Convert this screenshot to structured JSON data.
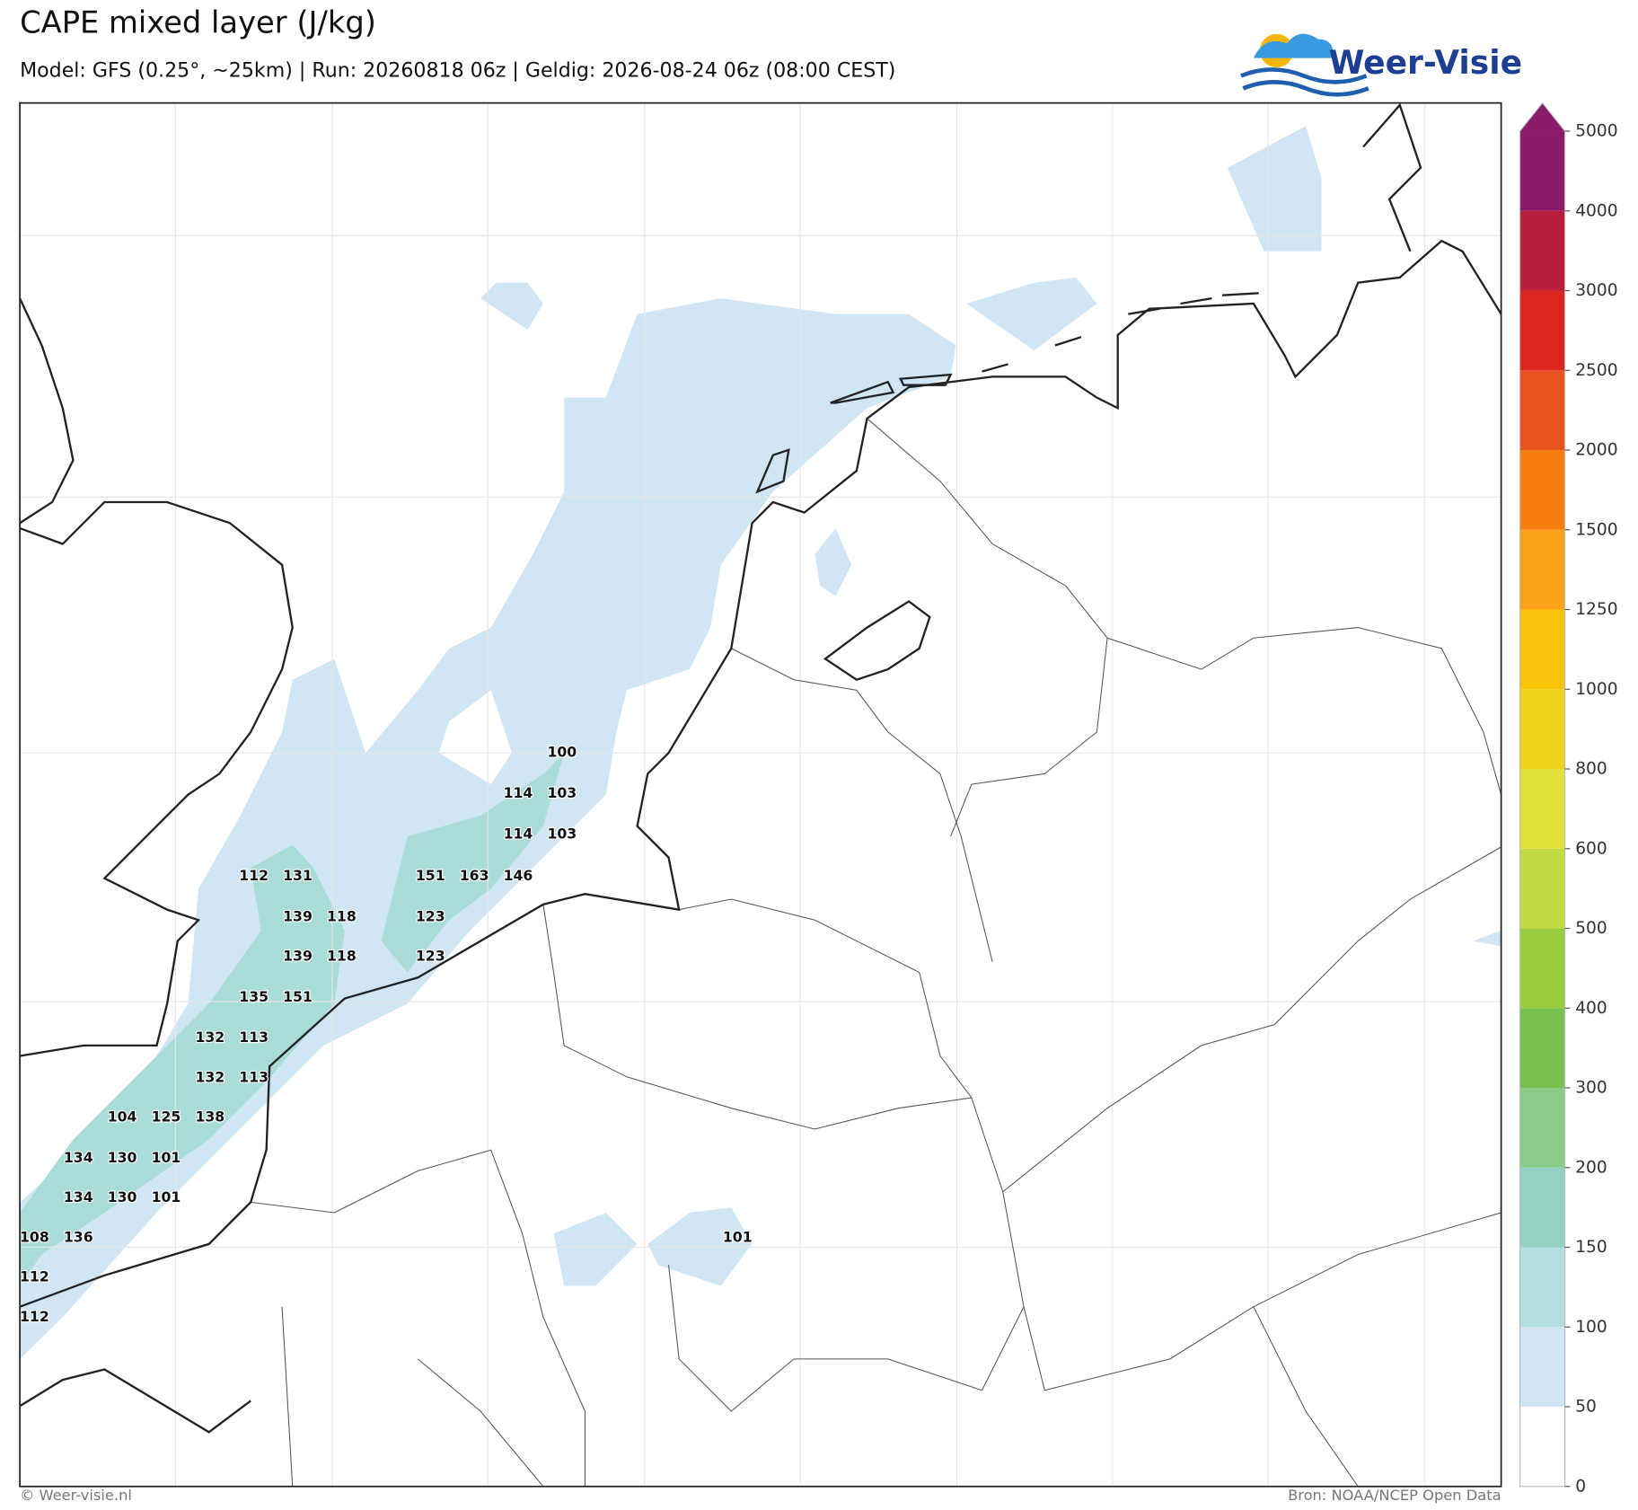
{
  "header": {
    "title": "CAPE mixed layer (J/kg)",
    "subtitle": "Model: GFS (0.25°, ~25km)  |  Run: 20260818 06z  |  Geldig: 2026-08-24 06z (08:00 CEST)",
    "logo": "Weer-Visie"
  },
  "map": {
    "values": [
      100,
      114,
      103,
      114,
      103,
      112,
      131,
      151,
      163,
      146,
      139,
      118,
      123,
      139,
      118,
      123,
      135,
      151,
      132,
      113,
      132,
      113,
      104,
      125,
      138,
      134,
      130,
      101,
      134,
      130,
      101,
      108,
      136,
      101,
      112,
      112
    ]
  },
  "colorbar": {
    "levels": [
      0,
      50,
      100,
      150,
      200,
      300,
      400,
      500,
      600,
      800,
      1000,
      1250,
      1500,
      2000,
      2500,
      3000,
      4000,
      5000
    ],
    "colors": [
      "#ffffff",
      "#d0e6f5",
      "#b3dfe0",
      "#93d2c3",
      "#88cc88",
      "#78c150",
      "#9acc3f",
      "#c2db45",
      "#dfe03a",
      "#f0d21b",
      "#fbc20a",
      "#fba11a",
      "#f77f0d",
      "#e8521c",
      "#dc2420",
      "#b81f3c",
      "#8b1a6b"
    ],
    "extend_color": "#8b1a6b"
  },
  "footer": {
    "copyright": "© Weer-visie.nl",
    "source": "Bron: NOAA/NCEP Open Data"
  }
}
